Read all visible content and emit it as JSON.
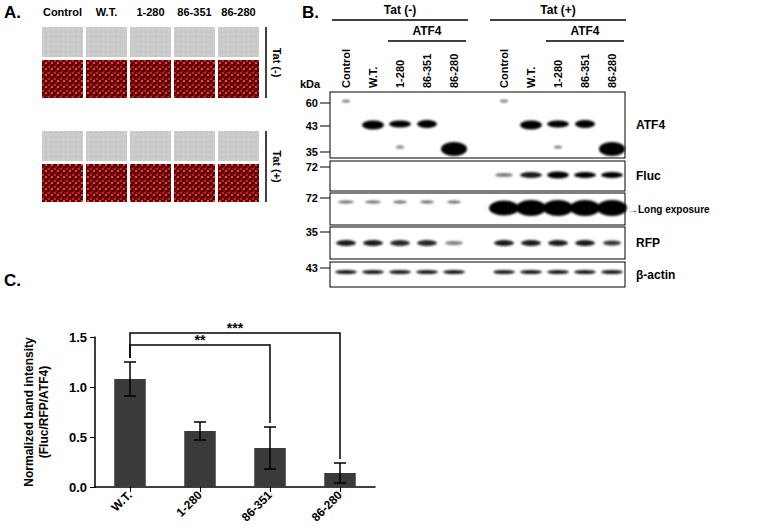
{
  "panel_labels": [
    "A.",
    "B.",
    "C."
  ],
  "panel_a": {
    "columns": [
      "Control",
      "W.T.",
      "1-280",
      "86-351",
      "86-280"
    ],
    "rows": [
      "Tat (-)",
      "Tat (+)"
    ]
  },
  "panel_b": {
    "unit": "kDa",
    "groups": [
      "Tat (-)",
      "Tat (+)"
    ],
    "sub_label": "ATF4",
    "lanes": [
      "Control",
      "W.T.",
      "1-280",
      "86-351",
      "86-280"
    ],
    "blots": [
      {
        "label": "ATF4",
        "markers": [
          60,
          43,
          35
        ]
      },
      {
        "label": "Fluc",
        "markers": [
          72
        ]
      },
      {
        "label": "→Long exposure",
        "markers": [
          72
        ]
      },
      {
        "label": "RFP",
        "markers": [
          35
        ]
      },
      {
        "label": "β-actin",
        "markers": [
          43
        ]
      }
    ]
  },
  "chart_data": {
    "type": "bar",
    "y_label": "Normalized band intensity\n(Fluc/RFP/ATF4)",
    "categories": [
      "W.T.",
      "1-280",
      "86-351",
      "86-280"
    ],
    "values": [
      1.08,
      0.56,
      0.39,
      0.14
    ],
    "errors": [
      0.17,
      0.09,
      0.21,
      0.1
    ],
    "color": "#3a3a3a",
    "ylim": [
      0,
      1.5
    ],
    "yticks": [
      {
        "value": 0,
        "label": "0.0"
      },
      {
        "value": 0.5,
        "label": "0.5"
      },
      {
        "value": 1,
        "label": "1.0"
      },
      {
        "value": 1.5,
        "label": "1.5"
      }
    ],
    "grid": false,
    "significance": [
      {
        "from": "W.T.",
        "to": "86-351",
        "label": "**"
      },
      {
        "from": "W.T.",
        "to": "86-280",
        "label": "***"
      }
    ]
  }
}
